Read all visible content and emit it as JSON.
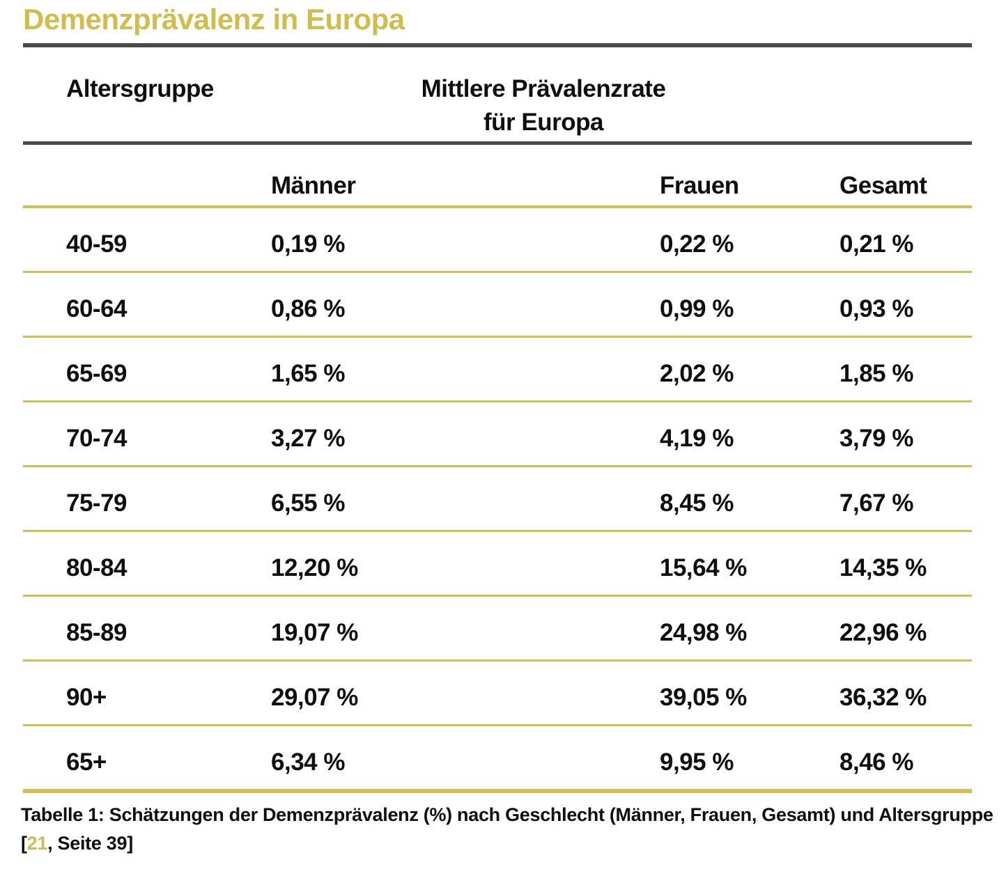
{
  "title": "Demenzprävalenz in Europa",
  "colors": {
    "accent_gold_title": "#d1bc4e",
    "gold_row_line": "#d3be50",
    "dark_rule": "#4a4a4a",
    "text": "#0f0f0f",
    "citation_gold": "#cfba55"
  },
  "table": {
    "group_header_left": "Altersgruppe",
    "group_header_center_line1": "Mittlere Prävalenzrate",
    "group_header_center_line2": "für Europa",
    "column_headers": {
      "maenner": "Männer",
      "frauen": "Frauen",
      "gesamt": "Gesamt"
    },
    "rows": [
      {
        "age": "40-59",
        "maenner": "0,19 %",
        "frauen": "0,22 %",
        "gesamt": "0,21 %"
      },
      {
        "age": "60-64",
        "maenner": "0,86 %",
        "frauen": "0,99 %",
        "gesamt": "0,93 %"
      },
      {
        "age": "65-69",
        "maenner": "1,65 %",
        "frauen": "2,02 %",
        "gesamt": "1,85 %"
      },
      {
        "age": "70-74",
        "maenner": "3,27 %",
        "frauen": "4,19 %",
        "gesamt": "3,79 %"
      },
      {
        "age": "75-79",
        "maenner": "6,55 %",
        "frauen": "8,45 %",
        "gesamt": "7,67 %"
      },
      {
        "age": "80-84",
        "maenner": "12,20 %",
        "frauen": "15,64 %",
        "gesamt": "14,35 %"
      },
      {
        "age": "85-89",
        "maenner": "19,07 %",
        "frauen": "24,98 %",
        "gesamt": "22,96 %"
      },
      {
        "age": "90+",
        "maenner": "29,07 %",
        "frauen": "39,05 %",
        "gesamt": "36,32 %"
      },
      {
        "age": "65+",
        "maenner": "6,34 %",
        "frauen": "9,95 %",
        "gesamt": "8,46 %"
      }
    ]
  },
  "caption": {
    "line1": "Tabelle 1: Schätzungen der Demenzprävalenz (%) nach Geschlecht (Männer, Frauen, Gesamt) und Altersgruppe",
    "bracket_open": "[",
    "reference": "21",
    "suffix": ", Seite 39]"
  }
}
